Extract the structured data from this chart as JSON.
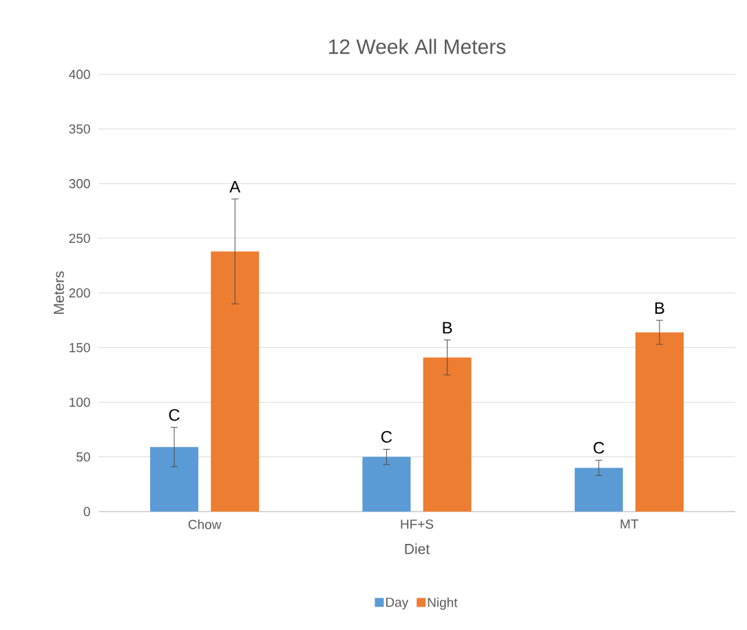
{
  "chart_data": {
    "type": "bar",
    "title": "12 Week All Meters",
    "xlabel": "Diet",
    "ylabel": "Meters",
    "categories": [
      "Chow",
      "HF+S",
      "MT"
    ],
    "series": [
      {
        "name": "Day",
        "color": "#5b9bd5",
        "values": [
          59,
          50,
          40
        ],
        "errors": [
          18,
          7,
          7
        ]
      },
      {
        "name": "Night",
        "color": "#ed7d31",
        "values": [
          238,
          141,
          164
        ],
        "errors": [
          48,
          16,
          11
        ]
      }
    ],
    "ylim": [
      0,
      400
    ],
    "yticks": [
      0,
      50,
      100,
      150,
      200,
      250,
      300,
      350,
      400
    ],
    "grid": "y",
    "legend": "bottom",
    "annotations": [
      "C",
      "A",
      "C",
      "B",
      "C",
      "B"
    ]
  }
}
